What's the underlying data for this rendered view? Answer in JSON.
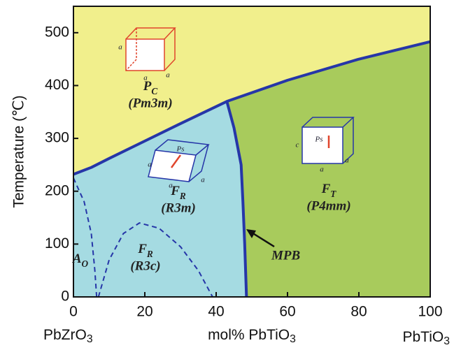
{
  "chart_data": {
    "type": "phase-diagram",
    "x_label": {
      "text": "mol% PbTiO",
      "sub": "3"
    },
    "y_label": "Temperature (℃)",
    "x_end_labels": [
      {
        "text": "PbZrO",
        "sub": "3"
      },
      {
        "text": "PbTiO",
        "sub": "3"
      }
    ],
    "xlim": [
      0,
      100
    ],
    "ylim": [
      0,
      550
    ],
    "xticks": [
      0,
      20,
      40,
      60,
      80,
      100
    ],
    "yticks": [
      0,
      100,
      200,
      300,
      400,
      500
    ],
    "colors": {
      "cubic": "#f1ef8c",
      "rhombohedral": "#a5dbe2",
      "tetragonal": "#a8cb5c",
      "boundary": "#2636a8"
    },
    "boundaries": [
      {
        "x": [
          0,
          5,
          10,
          20,
          30,
          43,
          60,
          80,
          100
        ],
        "y": [
          232,
          245,
          262,
          295,
          328,
          370,
          410,
          450,
          483
        ],
        "style": "solid"
      },
      {
        "x": [
          43,
          45,
          47,
          47.5,
          48,
          48.5
        ],
        "y": [
          370,
          320,
          250,
          180,
          100,
          0
        ],
        "style": "solid"
      },
      {
        "x": [
          7,
          10,
          14,
          18.5,
          24,
          30,
          35,
          39
        ],
        "y": [
          0,
          70,
          120,
          140,
          130,
          95,
          50,
          0
        ],
        "style": "dashed"
      },
      {
        "x": [
          0,
          3,
          5,
          6,
          6.5
        ],
        "y": [
          225,
          180,
          120,
          50,
          0
        ],
        "style": "dashed"
      }
    ],
    "regions": [
      {
        "label": "P",
        "sub": "C",
        "group": "(Pm3m)"
      },
      {
        "label": "F",
        "sub": "R",
        "group": "(R3m)"
      },
      {
        "label": "F",
        "sub": "T",
        "group": "(P4mm)"
      },
      {
        "label": "F",
        "sub": "R",
        "group": "(R3c)"
      },
      {
        "label": "A",
        "sub": "O"
      }
    ],
    "annotation": "MPB",
    "cell_labels": [
      [
        "a",
        "a",
        "a"
      ],
      [
        "Ps",
        "a",
        "a",
        "a"
      ],
      [
        "Ps",
        "c",
        "a",
        "a"
      ]
    ]
  }
}
